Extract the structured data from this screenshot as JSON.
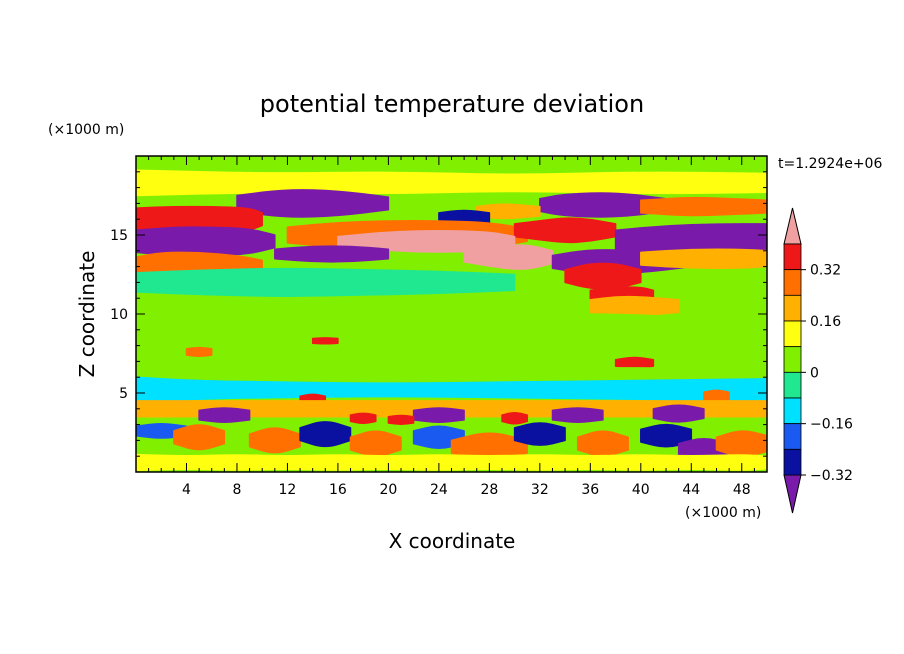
{
  "chart_data": {
    "type": "heatmap",
    "title": "potential temperature deviation",
    "xlabel": "X coordinate",
    "ylabel": "Z coordinate",
    "x_unit": "(×1000 m)",
    "y_unit": "(×1000 m)",
    "time_label": "t=1.2924e+06",
    "xlim": [
      0,
      50
    ],
    "ylim": [
      0,
      20
    ],
    "x_ticks": [
      "4",
      "8",
      "12",
      "16",
      "20",
      "24",
      "28",
      "32",
      "36",
      "40",
      "44",
      "48"
    ],
    "y_ticks": [
      "5",
      "10",
      "15"
    ],
    "colorbar": {
      "labels": [
        "0.32",
        "0.16",
        "0",
        "-0.16",
        "-0.32"
      ],
      "levels": [
        -0.4,
        -0.32,
        -0.24,
        -0.16,
        -0.08,
        0,
        0.08,
        0.16,
        0.24,
        0.32,
        0.4
      ],
      "colors": [
        "#7a1aaa",
        "#0a10a0",
        "#1a5af0",
        "#00e0ff",
        "#20e890",
        "#80f000",
        "#ffff10",
        "#ffb000",
        "#ff7000",
        "#ee1818",
        "#f0a0a0"
      ]
    },
    "background_color_value": 0.02,
    "bands": [
      {
        "z": 18.3,
        "xs": [
          0,
          10,
          20,
          30,
          40,
          50
        ],
        "thick": [
          0.8,
          0.6,
          0.7,
          0.5,
          0.7,
          0.6
        ],
        "value": 0.12
      },
      {
        "z": 17.0,
        "xs": [
          8,
          12,
          16,
          20
        ],
        "thick": [
          0.5,
          0.9,
          0.8,
          0.4
        ],
        "value": -0.36
      },
      {
        "z": 16.9,
        "xs": [
          32,
          34,
          38,
          42
        ],
        "thick": [
          0.4,
          0.7,
          0.8,
          0.4
        ],
        "value": -0.36
      },
      {
        "z": 16.8,
        "xs": [
          40,
          44,
          47,
          50
        ],
        "thick": [
          0.4,
          0.6,
          0.5,
          0.4
        ],
        "value": 0.3
      },
      {
        "z": 16.5,
        "xs": [
          27,
          29,
          32
        ],
        "thick": [
          0.3,
          0.5,
          0.3
        ],
        "value": 0.2
      },
      {
        "z": 16.1,
        "xs": [
          24,
          26,
          28
        ],
        "thick": [
          0.3,
          0.5,
          0.3
        ],
        "value": -0.3
      },
      {
        "z": 16.0,
        "xs": [
          0,
          3,
          6,
          9,
          10
        ],
        "thick": [
          0.7,
          0.8,
          0.8,
          0.7,
          0.4
        ],
        "value": 0.36
      },
      {
        "z": 15.0,
        "xs": [
          12,
          16,
          20,
          24,
          28,
          31
        ],
        "thick": [
          0.5,
          0.8,
          0.9,
          0.9,
          0.8,
          0.4
        ],
        "value": 0.3
      },
      {
        "z": 15.3,
        "xs": [
          30,
          32,
          34,
          36,
          38
        ],
        "thick": [
          0.4,
          0.6,
          0.8,
          0.7,
          0.4
        ],
        "value": 0.32
      },
      {
        "z": 14.6,
        "xs": [
          16,
          20,
          24,
          28,
          30
        ],
        "thick": [
          0.3,
          0.6,
          0.7,
          0.6,
          0.3
        ],
        "value": 0.4
      },
      {
        "z": 14.6,
        "xs": [
          0,
          3,
          6,
          9,
          11
        ],
        "thick": [
          0.7,
          0.9,
          0.9,
          0.8,
          0.4
        ],
        "value": -0.38
      },
      {
        "z": 14.7,
        "xs": [
          38,
          42,
          46,
          50
        ],
        "thick": [
          0.6,
          0.9,
          1.0,
          1.0
        ],
        "value": -0.38
      },
      {
        "z": 13.8,
        "xs": [
          11,
          14,
          17,
          20
        ],
        "thick": [
          0.3,
          0.5,
          0.5,
          0.3
        ],
        "value": -0.34
      },
      {
        "z": 13.6,
        "xs": [
          26,
          29,
          31,
          33
        ],
        "thick": [
          0.3,
          0.7,
          0.8,
          0.4
        ],
        "value": 0.4
      },
      {
        "z": 13.3,
        "xs": [
          33,
          36,
          40,
          44
        ],
        "thick": [
          0.4,
          0.8,
          0.7,
          0.3
        ],
        "value": -0.34
      },
      {
        "z": 13.1,
        "xs": [
          0,
          2,
          5,
          8,
          10
        ],
        "thick": [
          0.5,
          0.8,
          0.8,
          0.6,
          0.3
        ],
        "value": 0.3
      },
      {
        "z": 13.5,
        "xs": [
          40,
          44,
          48,
          50
        ],
        "thick": [
          0.4,
          0.6,
          0.6,
          0.5
        ],
        "value": 0.2
      },
      {
        "z": 12.4,
        "xs": [
          34,
          36,
          38,
          40
        ],
        "thick": [
          0.4,
          0.8,
          0.8,
          0.4
        ],
        "value": 0.38
      },
      {
        "z": 11.2,
        "xs": [
          36,
          38,
          40,
          41
        ],
        "thick": [
          0.3,
          0.5,
          0.5,
          0.3
        ],
        "value": 0.36
      },
      {
        "z": 12.0,
        "xs": [
          0,
          6,
          12,
          18,
          24,
          30
        ],
        "thick": [
          0.6,
          0.8,
          0.9,
          0.8,
          0.7,
          0.5
        ],
        "value": -0.04
      },
      {
        "z": 10.5,
        "xs": [
          36,
          38,
          40,
          43
        ],
        "thick": [
          0.4,
          0.6,
          0.6,
          0.4
        ],
        "value": 0.2
      },
      {
        "z": 9.5,
        "xs": [
          20,
          26,
          32,
          38,
          44
        ],
        "thick": [
          0.3,
          0.5,
          0.5,
          0.5,
          0.3
        ],
        "value": 0.06
      },
      {
        "z": 8.5,
        "xs": [
          2,
          10,
          18,
          26,
          34
        ],
        "thick": [
          0.4,
          0.6,
          0.6,
          0.6,
          0.4
        ],
        "value": 0.05
      },
      {
        "z": 8.3,
        "xs": [
          14,
          15,
          16
        ],
        "thick": [
          0.15,
          0.2,
          0.15
        ],
        "value": 0.32
      },
      {
        "z": 6.9,
        "xs": [
          38,
          39.5,
          41
        ],
        "thick": [
          0.2,
          0.4,
          0.2
        ],
        "value": 0.36
      },
      {
        "z": 7.6,
        "xs": [
          4,
          5,
          6
        ],
        "thick": [
          0.2,
          0.3,
          0.2
        ],
        "value": 0.3
      },
      {
        "z": 6.0,
        "xs": [
          0,
          8,
          16,
          24,
          32,
          40,
          50
        ],
        "thick": [
          0.6,
          0.6,
          0.5,
          0.5,
          0.6,
          0.6,
          0.5
        ],
        "value": 0.05
      },
      {
        "z": 5.2,
        "xs": [
          0,
          4,
          10,
          20,
          30,
          40,
          50
        ],
        "thick": [
          0.8,
          0.6,
          0.5,
          0.4,
          0.5,
          0.6,
          0.7
        ],
        "value": -0.1
      },
      {
        "z": 4.6,
        "xs": [
          13,
          14,
          15
        ],
        "thick": [
          0.2,
          0.35,
          0.2
        ],
        "value": 0.32
      },
      {
        "z": 4.8,
        "xs": [
          45,
          46,
          47
        ],
        "thick": [
          0.25,
          0.4,
          0.25
        ],
        "value": 0.3
      },
      {
        "z": 4.0,
        "xs": [
          0,
          6,
          12,
          18,
          24,
          30,
          36,
          42,
          50
        ],
        "thick": [
          0.5,
          0.5,
          0.5,
          0.5,
          0.5,
          0.5,
          0.5,
          0.5,
          0.5
        ],
        "value": 0.18
      },
      {
        "z": 3.6,
        "xs": [
          5,
          7,
          9
        ],
        "thick": [
          0.3,
          0.5,
          0.3
        ],
        "value": -0.38
      },
      {
        "z": 3.6,
        "xs": [
          22,
          24,
          26
        ],
        "thick": [
          0.3,
          0.5,
          0.3
        ],
        "value": -0.36
      },
      {
        "z": 3.6,
        "xs": [
          33,
          35,
          37
        ],
        "thick": [
          0.3,
          0.5,
          0.3
        ],
        "value": -0.36
      },
      {
        "z": 3.7,
        "xs": [
          41,
          43,
          45
        ],
        "thick": [
          0.3,
          0.6,
          0.3
        ],
        "value": -0.38
      },
      {
        "z": 3.4,
        "xs": [
          17,
          18,
          19
        ],
        "thick": [
          0.2,
          0.35,
          0.2
        ],
        "value": 0.38
      },
      {
        "z": 3.3,
        "xs": [
          20,
          21,
          22
        ],
        "thick": [
          0.2,
          0.3,
          0.2
        ],
        "value": 0.36
      },
      {
        "z": 3.4,
        "xs": [
          29,
          30,
          31
        ],
        "thick": [
          0.2,
          0.4,
          0.2
        ],
        "value": 0.36
      },
      {
        "z": 2.6,
        "xs": [
          0,
          2,
          4
        ],
        "thick": [
          0.3,
          0.5,
          0.3
        ],
        "value": -0.2
      },
      {
        "z": 2.2,
        "xs": [
          3,
          5,
          7
        ],
        "thick": [
          0.4,
          0.9,
          0.4
        ],
        "value": 0.3
      },
      {
        "z": 2.0,
        "xs": [
          9,
          11,
          13
        ],
        "thick": [
          0.4,
          0.9,
          0.4
        ],
        "value": 0.26
      },
      {
        "z": 2.4,
        "xs": [
          13,
          15,
          17
        ],
        "thick": [
          0.4,
          0.9,
          0.4
        ],
        "value": -0.28
      },
      {
        "z": 1.8,
        "xs": [
          17,
          19,
          21
        ],
        "thick": [
          0.4,
          0.9,
          0.4
        ],
        "value": 0.3
      },
      {
        "z": 2.2,
        "xs": [
          22,
          24,
          26
        ],
        "thick": [
          0.4,
          0.8,
          0.4
        ],
        "value": -0.2
      },
      {
        "z": 1.6,
        "xs": [
          25,
          28,
          31
        ],
        "thick": [
          0.4,
          1.0,
          0.4
        ],
        "value": 0.3
      },
      {
        "z": 2.4,
        "xs": [
          30,
          32,
          34
        ],
        "thick": [
          0.4,
          0.8,
          0.4
        ],
        "value": -0.26
      },
      {
        "z": 1.8,
        "xs": [
          35,
          37,
          39
        ],
        "thick": [
          0.4,
          0.9,
          0.4
        ],
        "value": 0.3
      },
      {
        "z": 2.3,
        "xs": [
          40,
          42,
          44
        ],
        "thick": [
          0.4,
          0.8,
          0.4
        ],
        "value": -0.28
      },
      {
        "z": 1.4,
        "xs": [
          43,
          45,
          47
        ],
        "thick": [
          0.4,
          0.8,
          0.4
        ],
        "value": -0.34
      },
      {
        "z": 1.8,
        "xs": [
          46,
          48,
          50
        ],
        "thick": [
          0.4,
          0.9,
          0.5
        ],
        "value": 0.3
      },
      {
        "z": 0.6,
        "xs": [
          0,
          4,
          8,
          12,
          16,
          20,
          24,
          28,
          32,
          36,
          40,
          44,
          48,
          50
        ],
        "thick": [
          0.5,
          0.4,
          0.5,
          0.4,
          0.5,
          0.4,
          0.5,
          0.4,
          0.5,
          0.4,
          0.5,
          0.4,
          0.5,
          0.4
        ],
        "value": 0.1
      }
    ]
  }
}
